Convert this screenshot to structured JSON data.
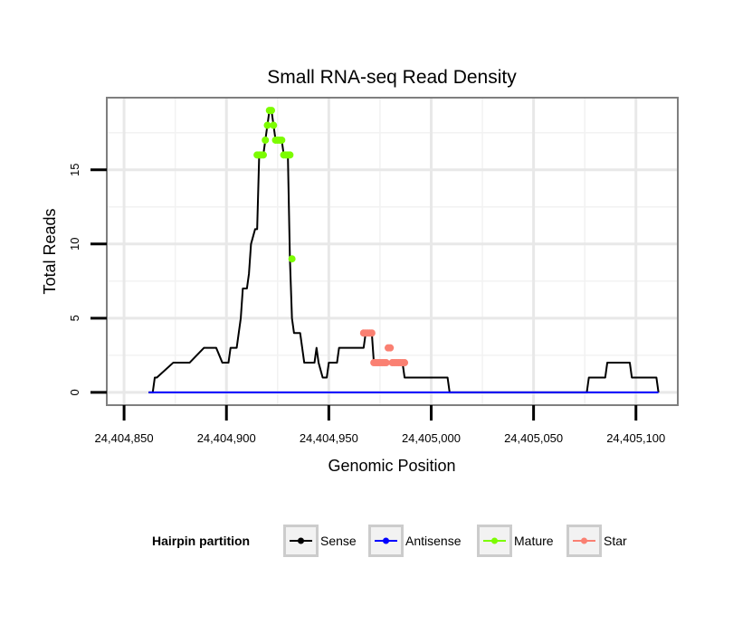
{
  "chart_data": {
    "type": "line",
    "title": "Small RNA-seq Read Density",
    "xlabel": "Genomic Position",
    "ylabel": "Total Reads",
    "xlim": [
      24404842,
      24405120
    ],
    "ylim": [
      -0.8,
      19.8
    ],
    "x_ticks": [
      24404850,
      24404900,
      24404950,
      24405000,
      24405050,
      24405100
    ],
    "x_tick_labels": [
      "24,404,850",
      "24,404,900",
      "24,404,950",
      "24,405,000",
      "24,405,050",
      "24,405,100"
    ],
    "y_ticks": [
      0,
      5,
      10,
      15
    ],
    "y_tick_labels": [
      "0",
      "5",
      "10",
      "15"
    ],
    "grid": true,
    "legend": {
      "title": "Hairpin partition",
      "placement": "bottom",
      "items": [
        {
          "label": "Sense",
          "color": "#000000"
        },
        {
          "label": "Antisense",
          "color": "#0000ff"
        },
        {
          "label": "Mature",
          "color": "#7cfc00"
        },
        {
          "label": "Star",
          "color": "#fa8072"
        }
      ]
    },
    "series": [
      {
        "name": "Sense",
        "color": "#000000",
        "x": [
          24404862,
          24404864,
          24404865,
          24404866,
          24404874,
          24404875,
          24404881,
          24404882,
          24404889,
          24404890,
          24404894,
          24404895,
          24404898,
          24404899,
          24404900,
          24404901,
          24404902,
          24404903,
          24404904,
          24404905,
          24404906,
          24404907,
          24404908,
          24404909,
          24404910,
          24404911,
          24404912,
          24404914,
          24404915,
          24404916,
          24404918,
          24404919,
          24404920,
          24404921,
          24404922,
          24404923,
          24404924,
          24404926,
          24404927,
          24404928,
          24404929,
          24404930,
          24404931,
          24404932,
          24404933,
          24404934,
          24404936,
          24404937,
          24404938,
          24404941,
          24404942,
          24404943,
          24404944,
          24404945,
          24404947,
          24404948,
          24404949,
          24404950,
          24404951,
          24404952,
          24404954,
          24404955,
          24404960,
          24404961,
          24404967,
          24404968,
          24404970,
          24404971,
          24404972,
          24404986,
          24404987,
          24405000,
          24405008,
          24405009,
          24405076,
          24405077,
          24405085,
          24405086,
          24405097,
          24405098,
          24405110,
          24405111
        ],
        "y": [
          0,
          0,
          1,
          1,
          2,
          2,
          2,
          2,
          3,
          3,
          3,
          3,
          2,
          2,
          2,
          2,
          3,
          3,
          3,
          3,
          4,
          5,
          7,
          7,
          7,
          8,
          10,
          11,
          11,
          16,
          16,
          17,
          18,
          19,
          19,
          18,
          17,
          17,
          17,
          16,
          16,
          16,
          9,
          5,
          4,
          4,
          4,
          3,
          2,
          2,
          2,
          2,
          3,
          2,
          1,
          1,
          1,
          2,
          2,
          2,
          2,
          3,
          3,
          3,
          3,
          4,
          4,
          4,
          2,
          2,
          1,
          1,
          1,
          0,
          0,
          1,
          1,
          2,
          2,
          1,
          1,
          0
        ]
      },
      {
        "name": "Antisense",
        "color": "#0000ff",
        "x": [
          24404862,
          24405111
        ],
        "y": [
          0,
          0
        ]
      },
      {
        "name": "Mature",
        "color": "#7cfc00",
        "x": [
          24404915,
          24404916,
          24404917,
          24404918,
          24404919,
          24404920,
          24404921,
          24404922,
          24404923,
          24404924,
          24404925,
          24404926,
          24404927,
          24404928,
          24404929,
          24404930,
          24404931,
          24404932
        ],
        "y": [
          16,
          16,
          16,
          16,
          17,
          18,
          19,
          19,
          18,
          17,
          17,
          17,
          17,
          16,
          16,
          16,
          16,
          9
        ]
      },
      {
        "name": "Star",
        "color": "#fa8072",
        "x": [
          24404967,
          24404968,
          24404969,
          24404970,
          24404971,
          24404972,
          24404973,
          24404974,
          24404975,
          24404976,
          24404977,
          24404978,
          24404979,
          24404980,
          24404981,
          24404982,
          24404983,
          24404984,
          24404985,
          24404986,
          24404987
        ],
        "y": [
          4,
          4,
          4,
          4,
          4,
          2,
          2,
          2,
          2,
          2,
          2,
          2,
          3,
          3,
          2,
          2,
          2,
          2,
          2,
          2,
          2
        ]
      }
    ]
  }
}
